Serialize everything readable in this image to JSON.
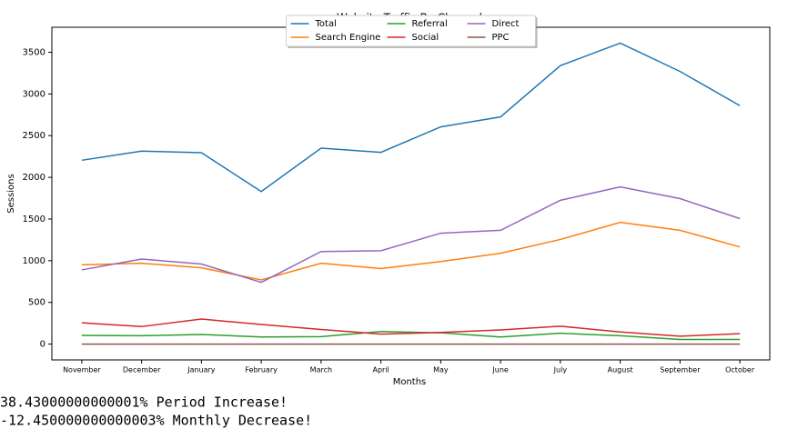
{
  "chart_data": {
    "type": "line",
    "title": "Website Traffic By Channel",
    "xlabel": "Months",
    "ylabel": "Sessions",
    "categories": [
      "November",
      "December",
      "January",
      "February",
      "March",
      "April",
      "May",
      "June",
      "July",
      "August",
      "September",
      "October"
    ],
    "series": [
      {
        "name": "Total",
        "color": "#1f77b4",
        "values": [
          2205,
          2315,
          2295,
          1830,
          2350,
          2300,
          2605,
          2725,
          3340,
          3610,
          3270,
          2860
        ]
      },
      {
        "name": "Search Engine",
        "color": "#ff7f0e",
        "values": [
          950,
          970,
          915,
          770,
          970,
          905,
          990,
          1090,
          1255,
          1460,
          1365,
          1165
        ]
      },
      {
        "name": "Referral",
        "color": "#2ca02c",
        "values": [
          105,
          100,
          115,
          85,
          90,
          150,
          135,
          85,
          130,
          100,
          55,
          55
        ]
      },
      {
        "name": "Social",
        "color": "#d62728",
        "values": [
          255,
          210,
          300,
          235,
          175,
          120,
          140,
          170,
          215,
          145,
          95,
          125
        ]
      },
      {
        "name": "Direct",
        "color": "#9467bd",
        "values": [
          890,
          1020,
          960,
          740,
          1110,
          1120,
          1330,
          1365,
          1725,
          1885,
          1745,
          1505
        ]
      },
      {
        "name": "PPC",
        "color": "#8c564b",
        "values": [
          0,
          0,
          0,
          0,
          0,
          0,
          0,
          0,
          0,
          0,
          0,
          0
        ]
      }
    ],
    "ylim": [
      -190,
      3800
    ],
    "yticks": [
      0,
      500,
      1000,
      1500,
      2000,
      2500,
      3000,
      3500
    ],
    "legend": "upper center",
    "legend_columns": 3
  },
  "notes": [
    {
      "text": "38.43000000000001% Period Increase!",
      "color": "#3a7ebf"
    },
    {
      "text": "-12.450000000000003% Monthly Decrease!",
      "color": "#8b0000"
    }
  ]
}
